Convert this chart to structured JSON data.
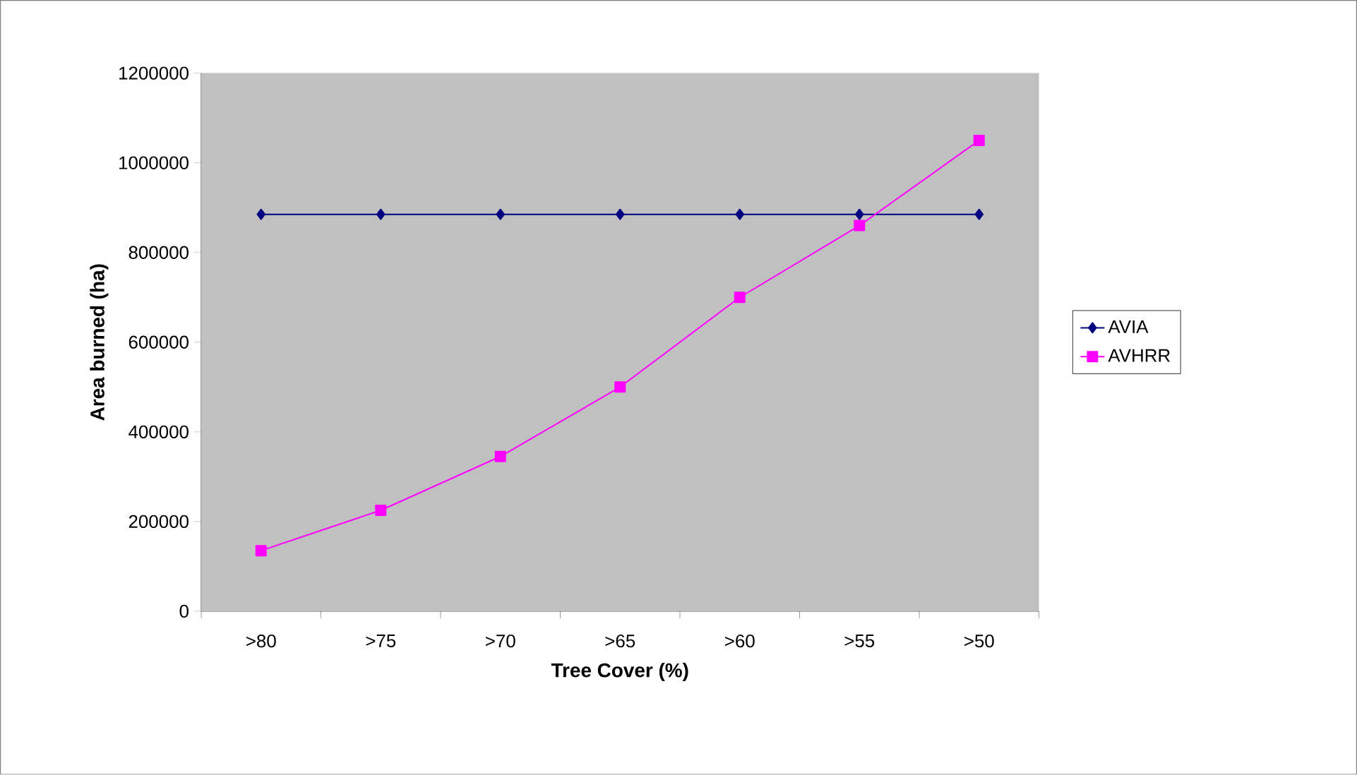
{
  "chart_data": {
    "type": "line",
    "xlabel": "Tree Cover (%)",
    "ylabel": "Area burned (ha)",
    "categories": [
      ">80",
      ">75",
      ">70",
      ">65",
      ">60",
      ">55",
      ">50"
    ],
    "series": [
      {
        "name": "AVIA",
        "color": "#000080",
        "marker": "diamond",
        "values": [
          885000,
          885000,
          885000,
          885000,
          885000,
          885000,
          885000
        ]
      },
      {
        "name": "AVHRR",
        "color": "#ff00ff",
        "marker": "square",
        "values": [
          135000,
          225000,
          345000,
          500000,
          700000,
          860000,
          1050000
        ]
      }
    ],
    "ylim": [
      0,
      1200000
    ],
    "yticks": [
      0,
      200000,
      400000,
      600000,
      800000,
      1000000,
      1200000
    ],
    "grid": false,
    "legend": "right",
    "line_style": "solid"
  }
}
